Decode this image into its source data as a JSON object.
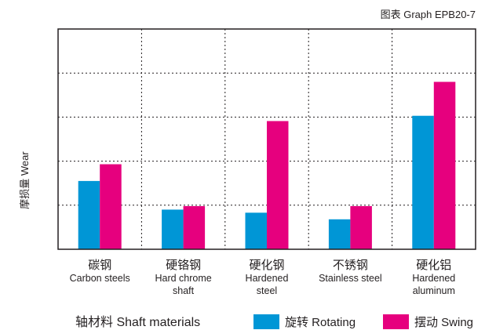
{
  "chart_data": {
    "type": "bar",
    "title": "图表 Graph EPB20-7",
    "ylabel": "摩损量 Wear",
    "xlabel": "轴材料 Shaft materials",
    "categories": [
      [
        "碳钢",
        "Carbon steels"
      ],
      [
        "硬铬钢",
        "Hard chrome",
        "shaft"
      ],
      [
        "硬化钢",
        "Hardened",
        "steel"
      ],
      [
        "不锈钢",
        "Stainless steel"
      ],
      [
        "硬化铝",
        "Hardened",
        "aluminum"
      ]
    ],
    "series": [
      {
        "name": "旋转 Rotating",
        "color": "#0096d6",
        "values": [
          1.55,
          0.9,
          0.83,
          0.68,
          3.03
        ]
      },
      {
        "name": "摆动 Swing",
        "color": "#e6007e",
        "values": [
          1.93,
          0.98,
          2.91,
          0.98,
          3.8
        ]
      }
    ],
    "ylim": [
      0,
      5
    ],
    "grid": true,
    "legend": "bottom-right"
  }
}
